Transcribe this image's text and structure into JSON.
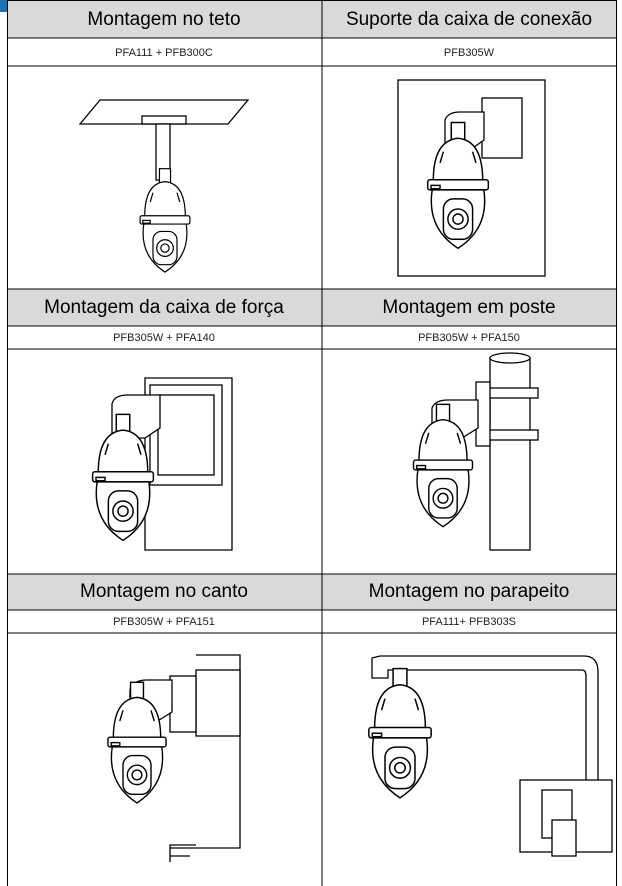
{
  "sections": [
    [
      {
        "title": "Montagem no teto",
        "model": "PFA111 + PFB300C"
      },
      {
        "title": "Suporte da caixa de conexão",
        "model": "PFB305W"
      }
    ],
    [
      {
        "title": "Montagem da caixa de força",
        "model": "PFB305W + PFA140"
      },
      {
        "title": "Montagem em poste",
        "model": "PFB305W + PFA150"
      }
    ],
    [
      {
        "title": "Montagem no canto",
        "model": "PFB305W + PFA151"
      },
      {
        "title": "Montagem no parapeito",
        "model": "PFA111+ PFB303S"
      }
    ]
  ]
}
